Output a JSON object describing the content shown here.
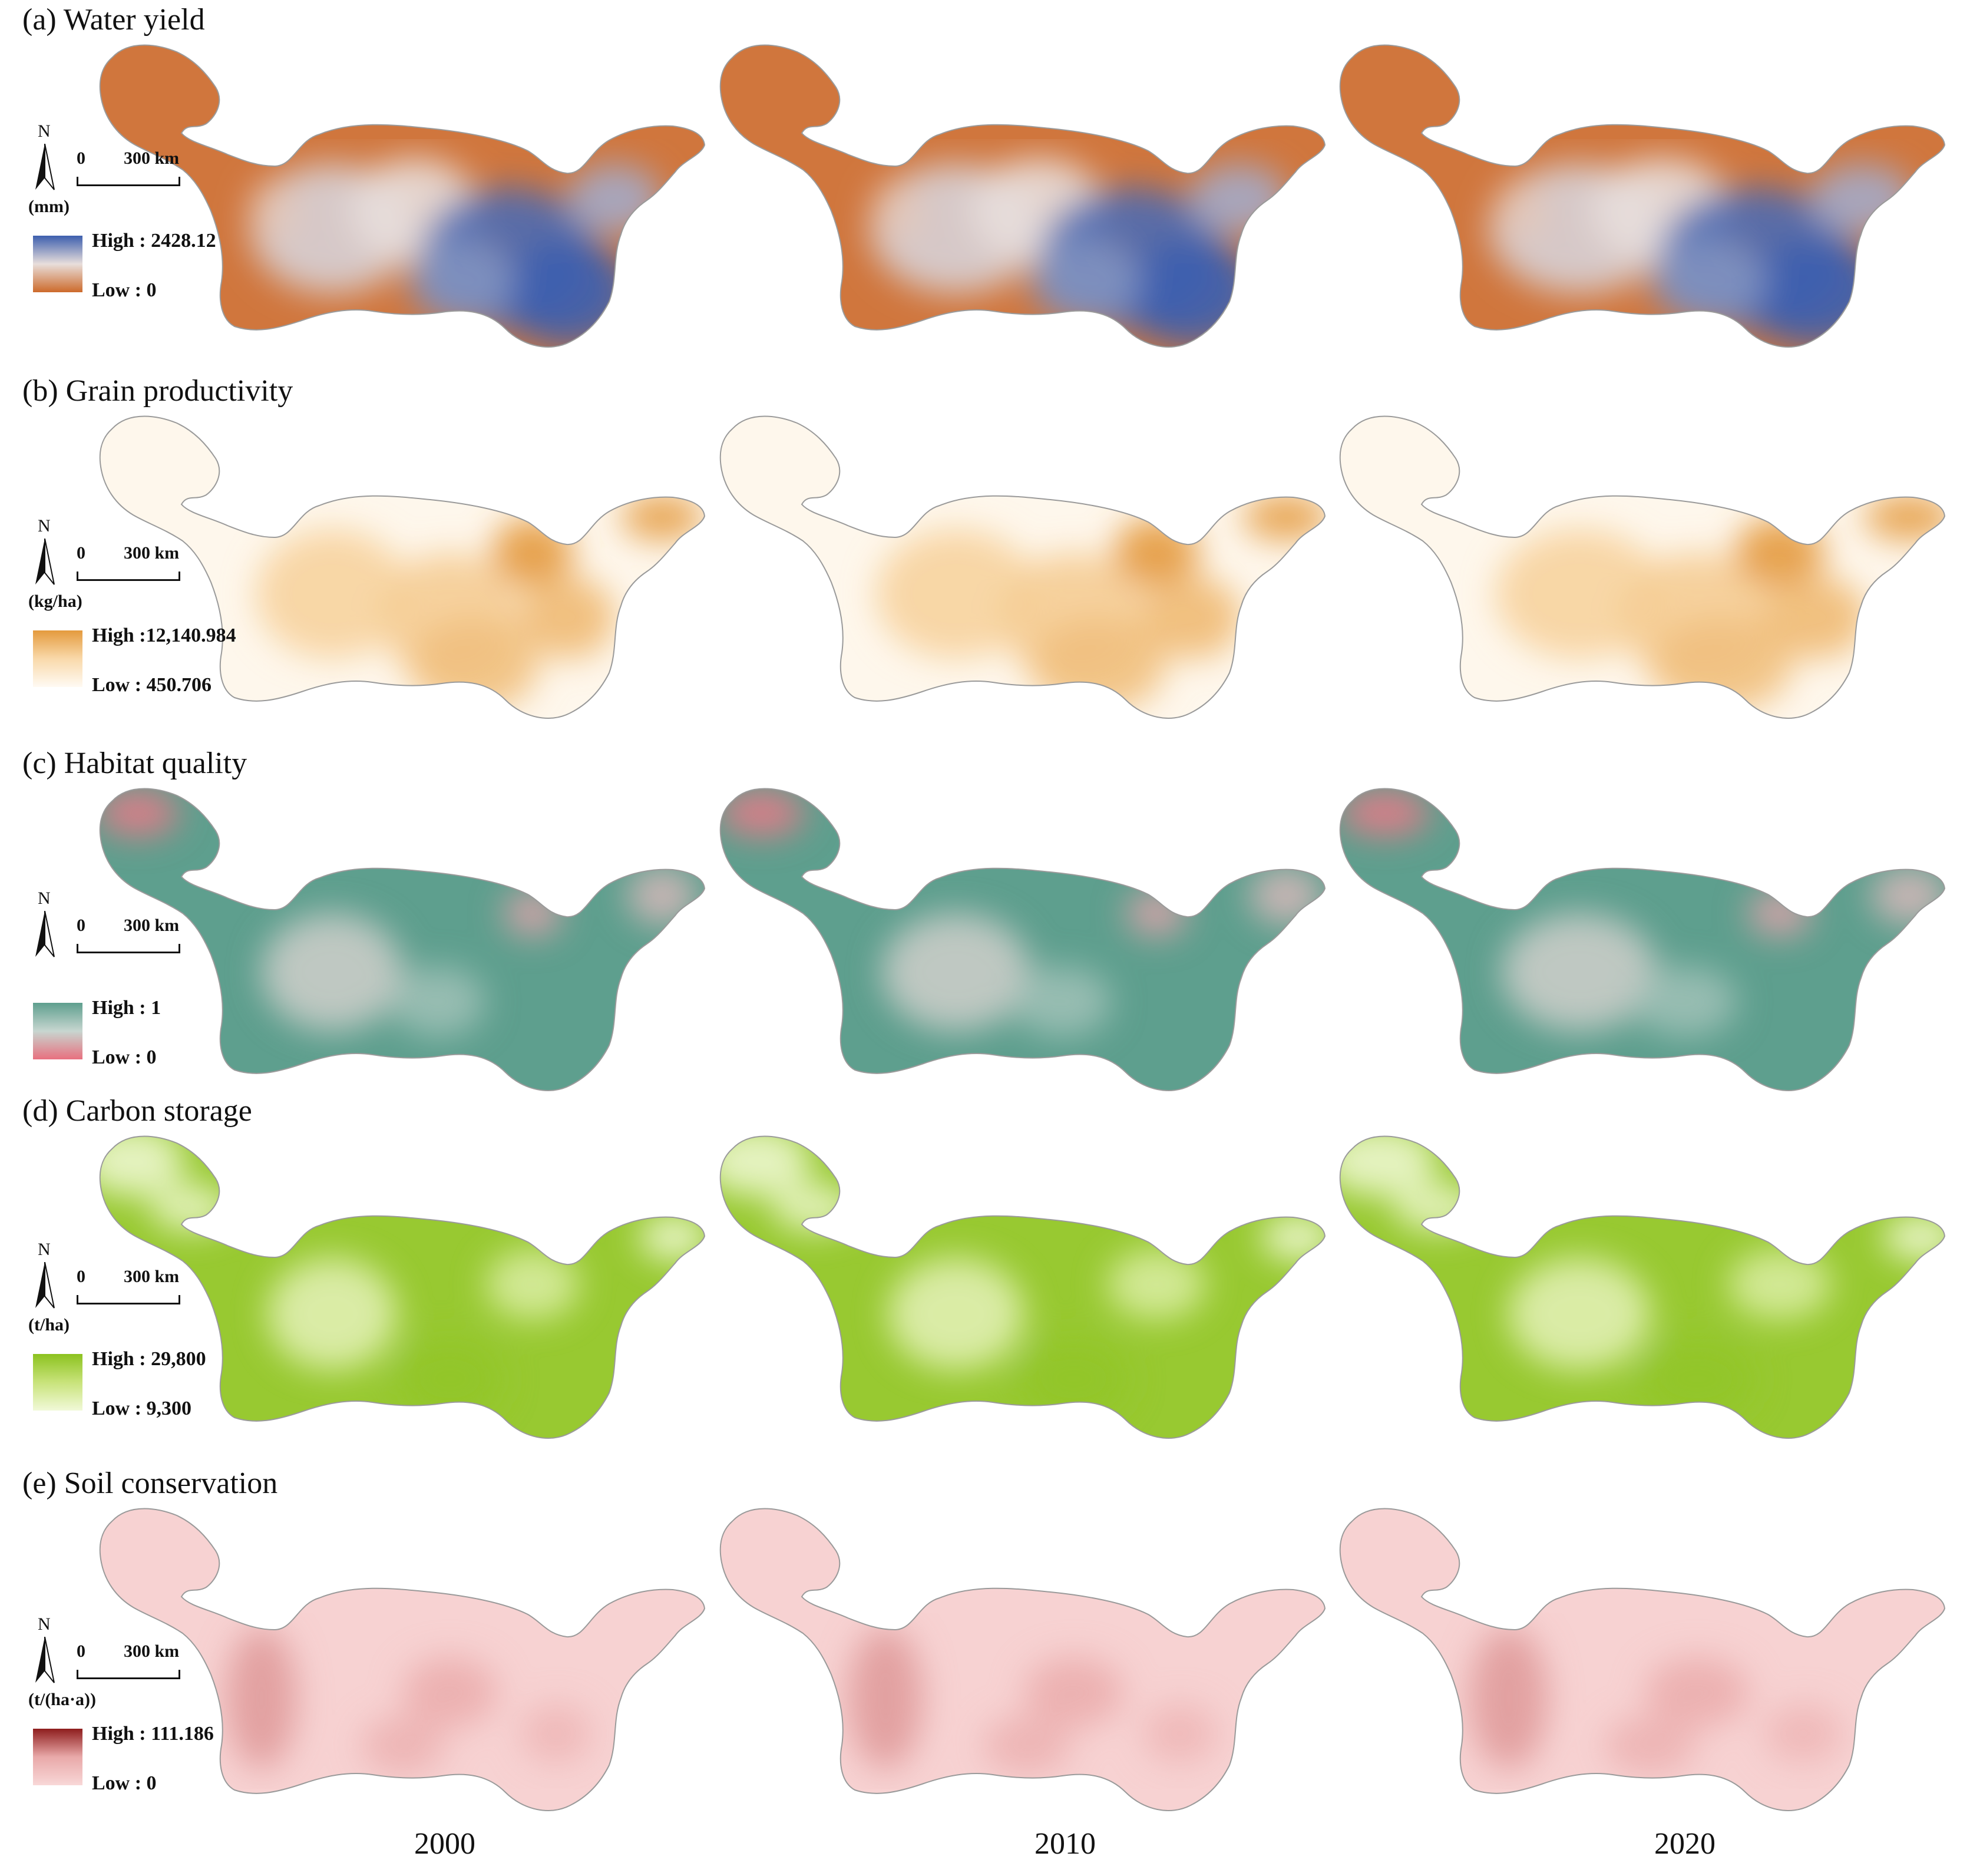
{
  "panels": [
    {
      "title": "(a) Water yield",
      "unit": "(mm)",
      "high_label": "High : 2428.12",
      "low_label": "Low : 0",
      "colors": {
        "low": "#cd6a2b",
        "mid": "#e8dedb",
        "high": "#3d5fae"
      }
    },
    {
      "title": "(b) Grain productivity",
      "unit": "(kg/ha)",
      "high_label": "High :12,140.984",
      "low_label": "Low : 450.706",
      "colors": {
        "low": "#fffaf3",
        "mid": "#f9d9aa",
        "high": "#e49a3d"
      }
    },
    {
      "title": "(c) Habitat quality",
      "unit": "",
      "high_label": "High : 1",
      "low_label": "Low : 0",
      "colors": {
        "low": "#e8707f",
        "mid": "#c7d6d0",
        "high": "#5e9f8e"
      }
    },
    {
      "title": "(d) Carbon storage",
      "unit": "(t/ha)",
      "high_label": "High : 29,800",
      "low_label": "Low : 9,300",
      "colors": {
        "low": "#f1f9d8",
        "mid": "#c8e37a",
        "high": "#8cc21f"
      }
    },
    {
      "title": "(e) Soil conservation",
      "unit": "(t/(ha·a))",
      "high_label": "High : 111.186",
      "low_label": "Low : 0",
      "colors": {
        "low": "#f8d7d7",
        "mid": "#e9a9a9",
        "high": "#8e1d1d"
      }
    }
  ],
  "north_label": "N",
  "scale": {
    "start": "0",
    "length": "300 km"
  },
  "years": [
    "2000",
    "2010",
    "2020"
  ],
  "outline_color": "#9a9a9a"
}
